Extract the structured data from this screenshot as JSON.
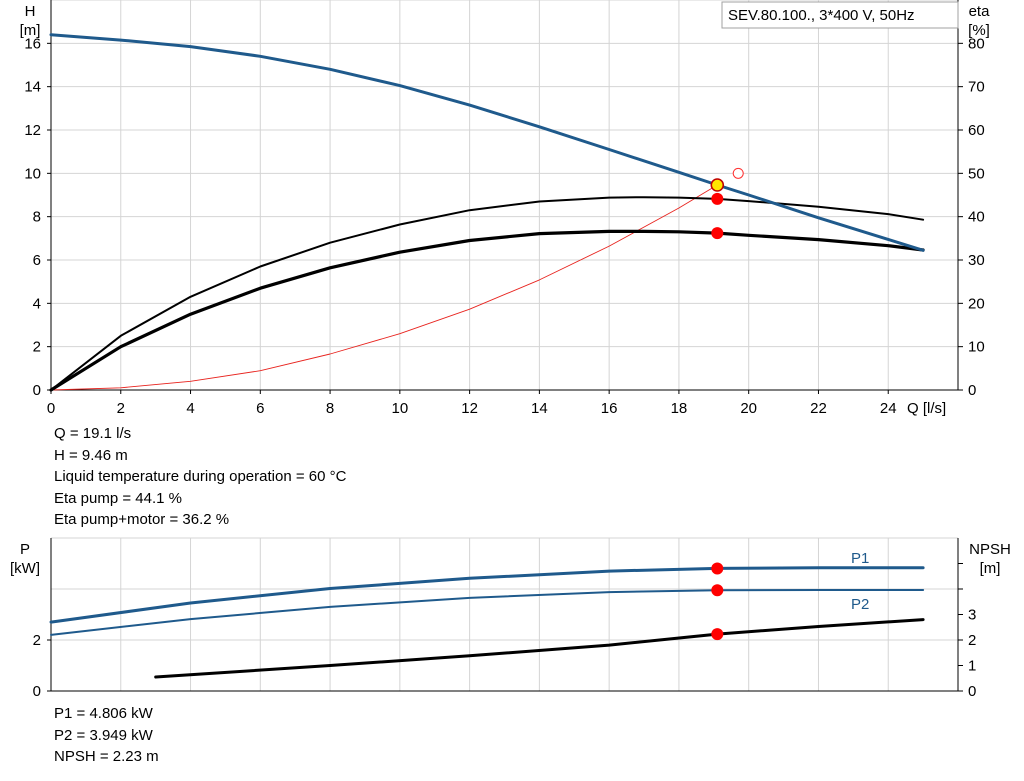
{
  "chart_data": [
    {
      "type": "line",
      "model_label": "SEV.80.100., 3*400 V, 50Hz",
      "x_axis": {
        "label": "Q [l/s]",
        "range": [
          0,
          26
        ],
        "ticks": [
          0,
          2,
          4,
          6,
          8,
          10,
          12,
          14,
          16,
          18,
          20,
          22,
          24
        ]
      },
      "y_left": {
        "label_line1": "H",
        "label_line2": "[m]",
        "range": [
          0,
          18
        ],
        "ticks": [
          0,
          2,
          4,
          6,
          8,
          10,
          12,
          14,
          16
        ]
      },
      "y_right": {
        "label_line1": "eta",
        "label_line2": "[%]",
        "range": [
          0,
          90
        ],
        "ticks": [
          0,
          10,
          20,
          30,
          40,
          50,
          60,
          70,
          80
        ]
      },
      "grid": true,
      "series": [
        {
          "key": "head",
          "axis": "left",
          "color": "#1f5a8c",
          "x": [
            0,
            2,
            4,
            6,
            8,
            10,
            12,
            14,
            16,
            18,
            19.1,
            20,
            22,
            24,
            25
          ],
          "y": [
            16.4,
            16.15,
            15.85,
            15.4,
            14.8,
            14.05,
            13.15,
            12.15,
            11.1,
            10.05,
            9.46,
            9.0,
            7.95,
            6.95,
            6.45
          ]
        },
        {
          "key": "eta_pump",
          "axis": "right",
          "color": "#000000",
          "x": [
            0,
            2,
            4,
            6,
            8,
            10,
            12,
            14,
            16,
            17,
            18,
            19.1,
            20,
            22,
            24,
            25
          ],
          "y": [
            0,
            12.5,
            21.5,
            28.5,
            34.0,
            38.2,
            41.5,
            43.5,
            44.4,
            44.5,
            44.4,
            44.1,
            43.6,
            42.3,
            40.6,
            39.3
          ]
        },
        {
          "key": "eta_total",
          "axis": "right",
          "color": "#000000",
          "x": [
            0,
            2,
            4,
            6,
            8,
            10,
            12,
            14,
            16,
            17,
            18,
            19.1,
            20,
            22,
            24,
            25
          ],
          "y": [
            0,
            10.0,
            17.5,
            23.5,
            28.2,
            31.8,
            34.5,
            36.1,
            36.6,
            36.6,
            36.5,
            36.2,
            35.7,
            34.7,
            33.3,
            32.3
          ]
        },
        {
          "key": "system_curve",
          "axis": "left",
          "color": "#e8241f",
          "x": [
            0,
            2,
            4,
            6,
            8,
            10,
            12,
            14,
            16,
            18,
            19.1
          ],
          "y": [
            0,
            0.1,
            0.4,
            0.89,
            1.66,
            2.6,
            3.73,
            5.08,
            6.64,
            8.4,
            9.46
          ]
        }
      ],
      "markers": [
        {
          "series": "head",
          "x": 19.1,
          "y": 9.46,
          "fill": "#ffe600"
        },
        {
          "series": "eta_pump",
          "x": 19.1,
          "y": 44.1,
          "fill": "#ff0000"
        },
        {
          "series": "eta_total",
          "x": 19.1,
          "y": 36.2,
          "fill": "#ff0000"
        },
        {
          "series": "open",
          "x": 19.7,
          "y": 10.0,
          "fill": "none"
        }
      ]
    },
    {
      "type": "line",
      "x_range": [
        0,
        26
      ],
      "y_left": {
        "label_line1": "P",
        "label_line2": "[kW]",
        "range": [
          0,
          6
        ],
        "ticks": [
          0,
          2
        ]
      },
      "y_right": {
        "label_line1": "NPSH",
        "label_line2": "[m]",
        "range": [
          0,
          6
        ],
        "ticks": [
          0,
          1,
          2,
          3
        ]
      },
      "grid": true,
      "series": [
        {
          "key": "p1",
          "name": "P1",
          "color": "#1f5a8c",
          "x": [
            0,
            4,
            8,
            12,
            16,
            19.1,
            22,
            25
          ],
          "y": [
            2.7,
            3.45,
            4.02,
            4.42,
            4.7,
            4.806,
            4.83,
            4.83
          ]
        },
        {
          "key": "p2",
          "name": "P2",
          "color": "#1f5a8c",
          "x": [
            0,
            4,
            8,
            12,
            16,
            19.1,
            22,
            25
          ],
          "y": [
            2.2,
            2.82,
            3.3,
            3.65,
            3.88,
            3.949,
            3.96,
            3.96
          ]
        },
        {
          "key": "npsh",
          "color": "#000000",
          "x": [
            3,
            8,
            12,
            16,
            19.1,
            22,
            25
          ],
          "y": [
            0.55,
            1.0,
            1.38,
            1.8,
            2.23,
            2.53,
            2.8
          ]
        }
      ],
      "markers": [
        {
          "series": "p1",
          "x": 19.1,
          "y": 4.806,
          "fill": "#ff0000"
        },
        {
          "series": "p2",
          "x": 19.1,
          "y": 3.949,
          "fill": "#ff0000"
        },
        {
          "series": "npsh",
          "x": 19.1,
          "y": 2.23,
          "fill": "#ff0000"
        }
      ]
    }
  ],
  "info_top": [
    "Q = 19.1 l/s",
    "H = 9.46 m",
    "Liquid temperature during operation = 60 °C",
    "Eta pump = 44.1 %",
    "Eta pump+motor = 36.2 %"
  ],
  "info_bottom": [
    "P1 = 4.806 kW",
    "P2 = 3.949 kW",
    "NPSH = 2.23 m"
  ]
}
